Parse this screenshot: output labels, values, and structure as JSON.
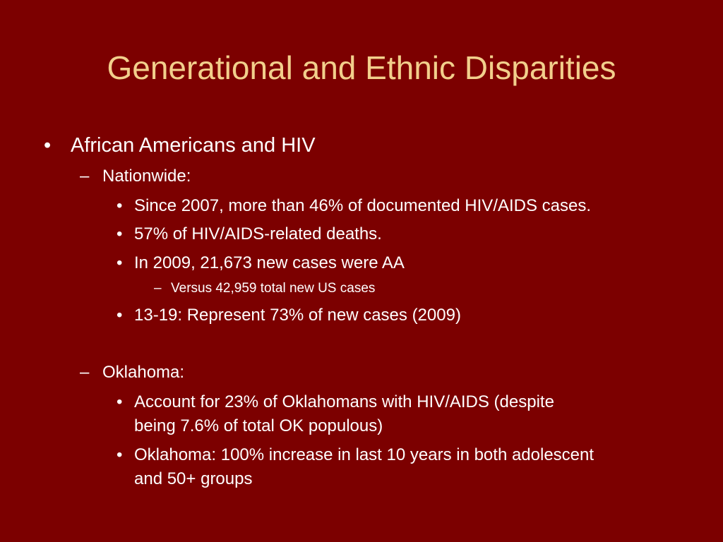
{
  "slide": {
    "title": "Generational and Ethnic Disparities",
    "bullet_char": "•",
    "dash_char": "–",
    "items": {
      "heading": "African Americans and HIV",
      "nationwide": {
        "label": "Nationwide:",
        "points": [
          "Since 2007, more than 46% of documented HIV/AIDS cases.",
          "57% of HIV/AIDS-related deaths.",
          "In 2009, 21,673 new cases were AA"
        ],
        "sub_point": "Versus 42,959 total new US cases",
        "last_point": "13-19: Represent 73% of new cases (2009)"
      },
      "oklahoma": {
        "label": "Oklahoma:",
        "points": [
          {
            "line1": "Account for 23% of Oklahomans with HIV/AIDS (despite",
            "line2": "being 7.6% of total OK populous)"
          },
          {
            "line1": "Oklahoma: 100% increase in last 10 years in both adolescent",
            "line2": "and 50+ groups"
          }
        ]
      }
    }
  }
}
